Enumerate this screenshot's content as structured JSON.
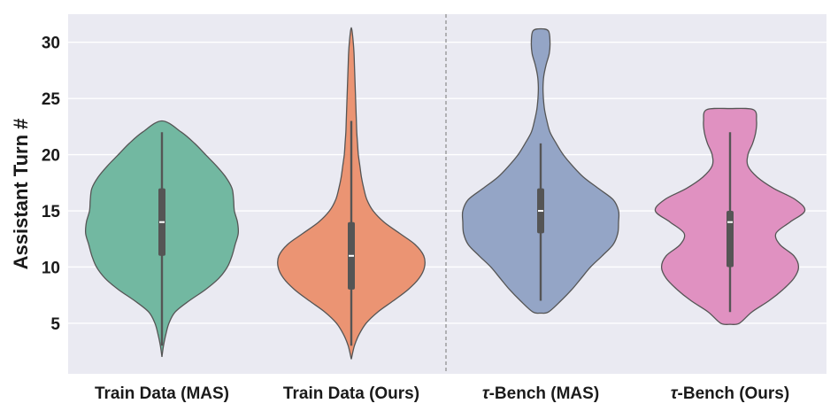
{
  "chart_data": {
    "type": "violin",
    "ylabel": "Assistant Turn #",
    "xlabel": "",
    "ylim": [
      0.5,
      32.5
    ],
    "yticks": [
      5,
      10,
      15,
      20,
      25,
      30
    ],
    "grid": true,
    "background": "#EAEAF2",
    "divider_after_category": 1,
    "categories": [
      {
        "label_prefix": "",
        "label_rest": "Train Data (MAS)",
        "color": "#72B8A1",
        "min": 3,
        "q1": 11,
        "median": 14,
        "q3": 17,
        "max": 22,
        "density": [
          [
            2,
            0.0
          ],
          [
            3,
            0.02
          ],
          [
            4,
            0.05
          ],
          [
            5,
            0.09
          ],
          [
            6,
            0.17
          ],
          [
            7,
            0.35
          ],
          [
            8,
            0.56
          ],
          [
            9,
            0.73
          ],
          [
            10,
            0.84
          ],
          [
            11,
            0.9
          ],
          [
            12,
            0.94
          ],
          [
            13,
            0.98
          ],
          [
            14,
            0.97
          ],
          [
            15,
            0.93
          ],
          [
            16,
            0.92
          ],
          [
            17,
            0.9
          ],
          [
            18,
            0.82
          ],
          [
            19,
            0.7
          ],
          [
            20,
            0.56
          ],
          [
            21,
            0.42
          ],
          [
            22,
            0.25
          ],
          [
            23,
            0.0
          ]
        ]
      },
      {
        "label_prefix": "",
        "label_rest": "Train Data (Ours)",
        "color": "#EB9473",
        "min": 3,
        "q1": 8,
        "median": 11,
        "q3": 14,
        "max": 23,
        "density": [
          [
            1.8,
            0.0
          ],
          [
            3,
            0.04
          ],
          [
            4,
            0.1
          ],
          [
            5,
            0.19
          ],
          [
            6,
            0.34
          ],
          [
            7,
            0.54
          ],
          [
            8,
            0.73
          ],
          [
            9,
            0.87
          ],
          [
            10,
            0.94
          ],
          [
            11,
            0.93
          ],
          [
            12,
            0.82
          ],
          [
            13,
            0.62
          ],
          [
            14,
            0.42
          ],
          [
            15,
            0.28
          ],
          [
            16,
            0.2
          ],
          [
            17,
            0.16
          ],
          [
            18,
            0.13
          ],
          [
            19,
            0.11
          ],
          [
            20,
            0.09
          ],
          [
            21,
            0.08
          ],
          [
            22,
            0.07
          ],
          [
            23,
            0.065
          ],
          [
            24,
            0.06
          ],
          [
            25,
            0.055
          ],
          [
            26,
            0.05
          ],
          [
            27,
            0.045
          ],
          [
            28,
            0.04
          ],
          [
            29,
            0.035
          ],
          [
            30,
            0.025
          ],
          [
            31,
            0.01
          ],
          [
            31.3,
            0.0
          ]
        ]
      },
      {
        "label_prefix": "τ",
        "label_rest": "-Bench (MAS)",
        "color": "#94A5C6",
        "min": 7,
        "q1": 13,
        "median": 15,
        "q3": 17,
        "max": 21,
        "density": [
          [
            5.9,
            0.0
          ],
          [
            6,
            0.1
          ],
          [
            7,
            0.26
          ],
          [
            8,
            0.4
          ],
          [
            9,
            0.52
          ],
          [
            10,
            0.64
          ],
          [
            11,
            0.79
          ],
          [
            12,
            0.93
          ],
          [
            13,
            0.99
          ],
          [
            14,
            1.0
          ],
          [
            15,
            1.0
          ],
          [
            16,
            0.93
          ],
          [
            17,
            0.74
          ],
          [
            18,
            0.55
          ],
          [
            19,
            0.41
          ],
          [
            20,
            0.29
          ],
          [
            21,
            0.2
          ],
          [
            22,
            0.12
          ],
          [
            23,
            0.08
          ],
          [
            24,
            0.05
          ],
          [
            25,
            0.035
          ],
          [
            26,
            0.03
          ],
          [
            27,
            0.04
          ],
          [
            28,
            0.07
          ],
          [
            29,
            0.11
          ],
          [
            30,
            0.12
          ],
          [
            31,
            0.1
          ],
          [
            31.2,
            0.0
          ]
        ]
      },
      {
        "label_prefix": "τ",
        "label_rest": "-Bench (Ours)",
        "color": "#E091C1",
        "min": 6,
        "q1": 10,
        "median": 14,
        "q3": 15,
        "max": 22,
        "density": [
          [
            4.9,
            0.0
          ],
          [
            5,
            0.12
          ],
          [
            6,
            0.28
          ],
          [
            7,
            0.5
          ],
          [
            8,
            0.68
          ],
          [
            9,
            0.82
          ],
          [
            10,
            0.88
          ],
          [
            11,
            0.82
          ],
          [
            12,
            0.64
          ],
          [
            13,
            0.59
          ],
          [
            14,
            0.77
          ],
          [
            15,
            0.96
          ],
          [
            16,
            0.84
          ],
          [
            17,
            0.56
          ],
          [
            18,
            0.35
          ],
          [
            19,
            0.23
          ],
          [
            20,
            0.23
          ],
          [
            21,
            0.29
          ],
          [
            22,
            0.33
          ],
          [
            23,
            0.34
          ],
          [
            24,
            0.3
          ],
          [
            24.1,
            0.0
          ]
        ]
      }
    ]
  }
}
